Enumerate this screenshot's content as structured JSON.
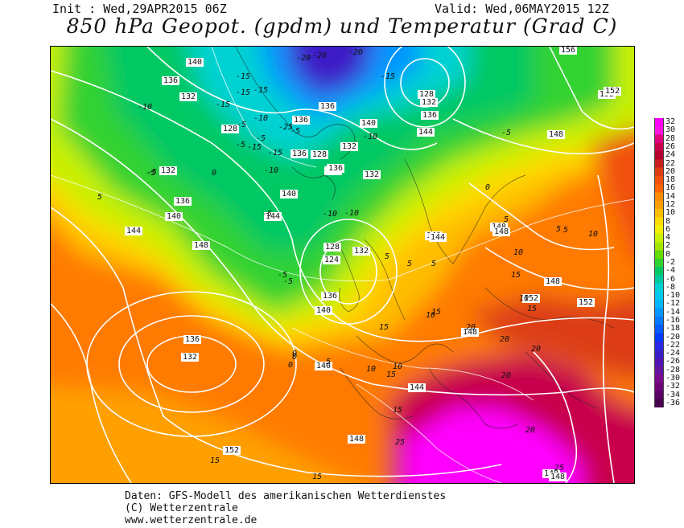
{
  "header": {
    "init": "Init : Wed,29APR2015 06Z",
    "valid": "Valid: Wed,06MAY2015 12Z",
    "title": "850 hPa Geopot. (gpdm) und Temperatur (Grad C)"
  },
  "legend": {
    "values": [
      "32",
      "30",
      "28",
      "26",
      "24",
      "22",
      "20",
      "18",
      "16",
      "14",
      "12",
      "10",
      "8",
      "6",
      "4",
      "2",
      "0",
      "-2",
      "-4",
      "-6",
      "-8",
      "-10",
      "-12",
      "-14",
      "-16",
      "-18",
      "-20",
      "-22",
      "-24",
      "-26",
      "-28",
      "-30",
      "-32",
      "-34",
      "-36"
    ],
    "colors": [
      "#ff00ff",
      "#f814e0",
      "#e00080",
      "#c8004c",
      "#b4002c",
      "#c81e1e",
      "#dc3c14",
      "#f0500a",
      "#ff6400",
      "#ff8c00",
      "#ffa000",
      "#ffbe00",
      "#ffdc00",
      "#f0f000",
      "#c8f000",
      "#a0e600",
      "#64dc00",
      "#32d232",
      "#00c864",
      "#00c8a0",
      "#00d2d2",
      "#00c8f0",
      "#00b4ff",
      "#0096ff",
      "#0078ff",
      "#005aff",
      "#003cff",
      "#2828e6",
      "#3c1ec8",
      "#5014b4",
      "#6414a0",
      "#780a8c",
      "#6e0078",
      "#5a0064",
      "#46004c"
    ]
  },
  "map_labels": {
    "geopotential": [
      "140",
      "136",
      "132",
      "128",
      "136",
      "136",
      "136",
      "132",
      "128",
      "132",
      "136",
      "140",
      "144",
      "140",
      "148",
      "144",
      "140",
      "132",
      "128",
      "124",
      "132",
      "136",
      "140",
      "136",
      "132",
      "140",
      "144",
      "148",
      "152",
      "156",
      "152",
      "148",
      "144",
      "148",
      "148",
      "148",
      "152",
      "152",
      "148",
      "140",
      "136",
      "132",
      "128",
      "136",
      "140",
      "144",
      "148",
      "152",
      "148"
    ],
    "temperature": [
      "-20",
      "-15",
      "-15",
      "-10",
      "-15",
      "-10",
      "-5",
      "-5",
      "-20",
      "-15",
      "-20",
      "-25",
      "-15",
      "-10",
      "-10",
      "-5",
      "-5",
      "-5",
      "-10",
      "-10",
      "0",
      "0",
      "0",
      "5",
      "5",
      "5",
      "0",
      "-5",
      "-5",
      "5",
      "5",
      "10",
      "10",
      "10",
      "5",
      "5",
      "10",
      "15",
      "15",
      "10",
      "15",
      "20",
      "20",
      "20",
      "15",
      "15",
      "15",
      "20",
      "20",
      "25",
      "25",
      "15",
      "10",
      "15",
      "5",
      "0",
      "-5",
      "-5",
      "-15",
      "-15",
      "-5"
    ]
  },
  "footer": {
    "line1": "Daten: GFS-Modell des amerikanischen Wetterdienstes",
    "line2": "(C) Wetterzentrale",
    "line3": "www.wetterzentrale.de"
  }
}
